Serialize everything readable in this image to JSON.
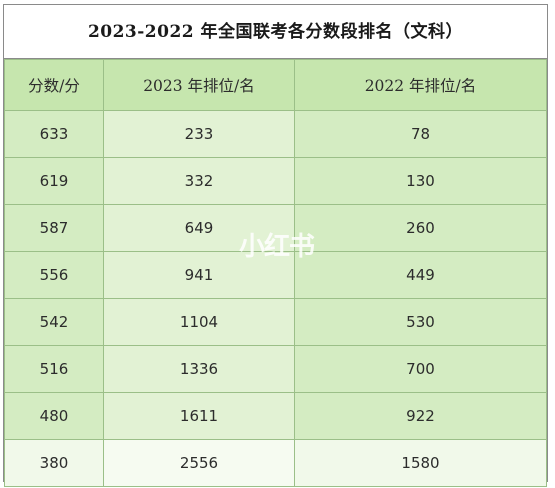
{
  "title": "2023-2022 年全国联考各分数段排名（文科）",
  "headers": [
    "分数/分",
    "2023 年排位/名",
    "2022 年排位/名"
  ],
  "rows": [
    [
      "633",
      "233",
      "78"
    ],
    [
      "619",
      "332",
      "130"
    ],
    [
      "587",
      "649",
      "260"
    ],
    [
      "556",
      "941",
      "449"
    ],
    [
      "542",
      "1104",
      "530"
    ],
    [
      "516",
      "1336",
      "700"
    ],
    [
      "480",
      "1611",
      "922"
    ],
    [
      "380",
      "2556",
      "1580"
    ]
  ],
  "watermark": "小红书",
  "colors": {
    "header_bg": "#c6e6ae",
    "cell_bg": "#d4ecc2",
    "border": "#9bbf88"
  }
}
